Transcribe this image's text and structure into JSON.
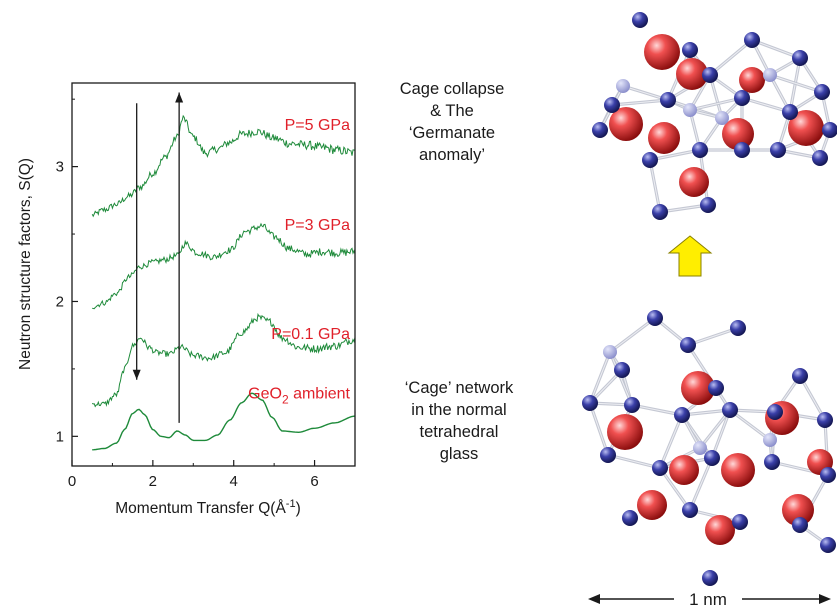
{
  "chart_data": {
    "type": "line",
    "xlabel": "Momentum Transfer Q(Å",
    "xlabel_sup": "-1",
    "xlabel_close": ")",
    "ylabel": "Neutron structure factors, S(Q)",
    "xlim": [
      0,
      7
    ],
    "ylim": [
      0.78,
      3.62
    ],
    "xticks": [
      "0",
      "2",
      "4",
      "6"
    ],
    "yticks": [
      "1",
      "2",
      "3"
    ],
    "series": [
      {
        "name": "P=5 GPa",
        "label_main": "P=5 GPa",
        "label_sub": "",
        "label_tail": "",
        "noise": 0.035,
        "x": [
          0.5,
          0.8,
          1.1,
          1.4,
          1.7,
          2.0,
          2.3,
          2.6,
          2.75,
          3.0,
          3.3,
          3.6,
          3.9,
          4.2,
          4.6,
          5.0,
          5.4,
          5.8,
          6.2,
          6.6,
          7.0
        ],
        "y": [
          2.64,
          2.68,
          2.72,
          2.78,
          2.85,
          2.95,
          3.07,
          3.22,
          3.36,
          3.22,
          3.1,
          3.13,
          3.18,
          3.24,
          3.26,
          3.21,
          3.17,
          3.16,
          3.14,
          3.12,
          3.1
        ]
      },
      {
        "name": "P=3 GPa",
        "label_main": "P=3 GPa",
        "label_sub": "",
        "label_tail": "",
        "noise": 0.03,
        "x": [
          0.5,
          0.8,
          1.1,
          1.4,
          1.7,
          2.0,
          2.3,
          2.6,
          2.8,
          3.1,
          3.5,
          3.9,
          4.3,
          4.7,
          5.0,
          5.4,
          5.8,
          6.2,
          6.6,
          7.0
        ],
        "y": [
          1.96,
          1.99,
          2.06,
          2.18,
          2.26,
          2.29,
          2.31,
          2.34,
          2.43,
          2.36,
          2.33,
          2.38,
          2.52,
          2.56,
          2.48,
          2.39,
          2.35,
          2.37,
          2.36,
          2.37
        ]
      },
      {
        "name": "P=0.1 GPa",
        "label_main": "P=0.1 GPa",
        "label_sub": "",
        "label_tail": "",
        "noise": 0.03,
        "x": [
          0.5,
          0.8,
          1.1,
          1.3,
          1.5,
          1.7,
          1.9,
          2.1,
          2.4,
          2.7,
          3.0,
          3.4,
          3.8,
          4.2,
          4.6,
          4.9,
          5.2,
          5.6,
          6.0,
          6.5,
          7.0
        ],
        "y": [
          1.24,
          1.24,
          1.31,
          1.5,
          1.67,
          1.73,
          1.66,
          1.62,
          1.61,
          1.66,
          1.6,
          1.58,
          1.62,
          1.77,
          1.88,
          1.85,
          1.73,
          1.66,
          1.65,
          1.67,
          1.72
        ]
      },
      {
        "name": "GeO2 ambient",
        "label_main": "GeO",
        "label_sub": "2",
        "label_tail": " ambient",
        "noise": 0,
        "x": [
          0.5,
          0.8,
          1.1,
          1.3,
          1.5,
          1.65,
          1.8,
          2.0,
          2.2,
          2.4,
          2.6,
          2.8,
          3.0,
          3.3,
          3.6,
          3.9,
          4.2,
          4.45,
          4.7,
          4.95,
          5.2,
          5.6,
          6.0,
          6.5,
          7.0
        ],
        "y": [
          0.9,
          0.91,
          0.95,
          1.05,
          1.17,
          1.2,
          1.16,
          1.05,
          1.0,
          0.99,
          1.04,
          1.01,
          0.97,
          0.97,
          1.01,
          1.12,
          1.25,
          1.32,
          1.27,
          1.14,
          1.04,
          1.03,
          1.06,
          1.1,
          1.15
        ]
      }
    ],
    "arrows": [
      {
        "direction": "down",
        "x": 1.6,
        "y_from": 3.47,
        "y_to": 1.42
      },
      {
        "direction": "up",
        "x": 2.65,
        "y_from": 1.1,
        "y_to": 3.55
      }
    ],
    "line_color": "#1e8a3a",
    "label_color": "#e0202a"
  },
  "captions": {
    "top": [
      "Cage collapse",
      "& The",
      "‘Germanate",
      "anomaly’"
    ],
    "bottom": [
      "‘Cage’ network",
      "in the normal",
      "tetrahedral",
      "glass"
    ]
  },
  "transition_arrow_color": "#ffee00",
  "scale_bar": {
    "label": "1 nm"
  },
  "colors": {
    "oxygen_atom": "#2a2f8c",
    "germanium_atom": "#d21e1e",
    "bond": "#bfc3cf"
  }
}
